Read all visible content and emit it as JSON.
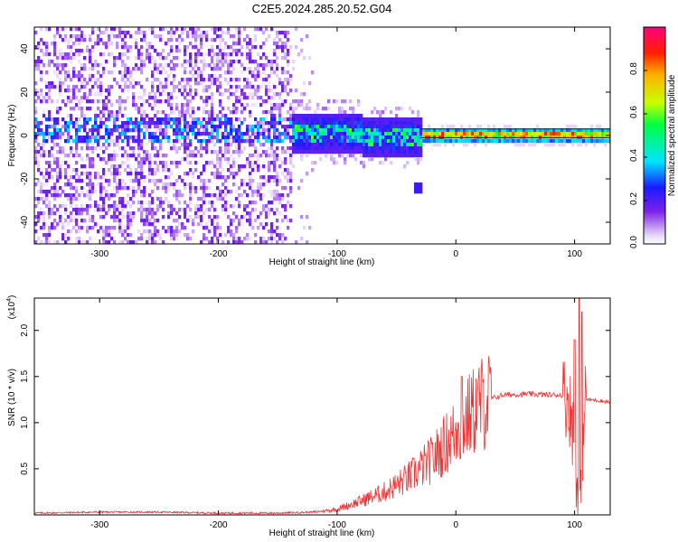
{
  "title": "C2E5.2024.285.20.52.G04",
  "chart_data": [
    {
      "type": "heatmap",
      "xlabel": "Height of straight line (km)",
      "ylabel": "Frequency (Hz)",
      "xlim": [
        -355,
        130
      ],
      "ylim": [
        -50,
        50
      ],
      "xticks": [
        -300,
        -200,
        -100,
        0,
        100
      ],
      "yticks": [
        -40,
        -20,
        0,
        20,
        40
      ],
      "colorbar": {
        "label": "Normalized spectral amplitude",
        "range": [
          0,
          1
        ],
        "ticks": [
          "0.0",
          "0.2",
          "0.4",
          "0.6",
          "0.8"
        ],
        "colormap": [
          "#ffffff",
          "#e6d5f7",
          "#7b22e8",
          "#1a1aff",
          "#00e5ff",
          "#00ff40",
          "#c8ff00",
          "#ffb000",
          "#ff2000",
          "#ff0080"
        ]
      },
      "features": [
        {
          "name": "noise region",
          "x_range": [
            -355,
            -140
          ],
          "freq_range": [
            -50,
            50
          ],
          "amplitude": 0.15
        },
        {
          "name": "signal band (noisy)",
          "x_range": [
            -140,
            -30
          ],
          "freq_center": 2,
          "freq_halfwidth": 9,
          "amplitude": 0.4
        },
        {
          "name": "clean carrier",
          "x_range": [
            -30,
            130
          ],
          "freq_center": 1,
          "freq_halfwidth": 2,
          "amplitude": 0.8
        },
        {
          "name": "spur",
          "x": -33,
          "freq": -23,
          "amplitude": 0.2
        }
      ]
    },
    {
      "type": "line",
      "xlabel": "Height of straight line (km)",
      "ylabel": "SNR (10 * v/v)",
      "scale_label_base": "(x10",
      "scale_label_exp": "4",
      "scale_label_tail": ")",
      "xlim": [
        -355,
        130
      ],
      "ylim": [
        0,
        2.35
      ],
      "xticks": [
        -300,
        -200,
        -100,
        0,
        100
      ],
      "yticks": [
        0.5,
        1.0,
        1.5,
        2.0
      ],
      "ytick_labels": [
        "0.5",
        "1.0",
        "1.5",
        "2.0"
      ],
      "color": "#ee3333",
      "x": [
        -355,
        -300,
        -250,
        -200,
        -150,
        -120,
        -100,
        -80,
        -60,
        -40,
        -20,
        -10,
        0,
        10,
        20,
        30,
        40,
        60,
        80,
        90,
        95,
        100,
        103,
        105,
        108,
        110,
        120,
        130
      ],
      "y": [
        0.02,
        0.03,
        0.03,
        0.02,
        0.02,
        0.03,
        0.06,
        0.15,
        0.25,
        0.4,
        0.6,
        0.75,
        0.9,
        1.05,
        1.2,
        1.26,
        1.3,
        1.31,
        1.3,
        1.3,
        1.25,
        0.8,
        0.2,
        0.15,
        1.2,
        1.25,
        1.24,
        1.22
      ],
      "spikes": [
        {
          "x": 2,
          "y": 1.0
        },
        {
          "x": 5,
          "y": 1.5
        },
        {
          "x": 100,
          "y": 1.9
        },
        {
          "x": 104,
          "y": 2.35
        },
        {
          "x": 106,
          "y": 2.2
        }
      ]
    }
  ]
}
